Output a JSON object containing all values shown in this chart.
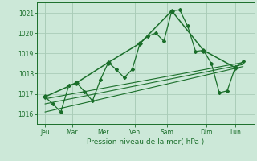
{
  "xlabel": "Pression niveau de la mer( hPa )",
  "bg_color": "#cce8d8",
  "plot_bg_color": "#cce8d8",
  "grid_color": "#aaccb8",
  "line_color": "#1a6e2a",
  "ylim": [
    1015.5,
    1021.5
  ],
  "yticks": [
    1016,
    1017,
    1018,
    1019,
    1020,
    1021
  ],
  "xlim": [
    -0.2,
    13.5
  ],
  "day_labels": [
    "Jeu",
    "Mar",
    "Mer",
    "Ven",
    "Sam",
    "Dim",
    "Lun"
  ],
  "day_positions": [
    0.3,
    2.0,
    4.0,
    6.0,
    8.0,
    10.5,
    12.3
  ],
  "series1_x": [
    0.3,
    0.8,
    1.3,
    1.8,
    2.3,
    2.8,
    3.3,
    3.8,
    4.3,
    4.8,
    5.3,
    5.8,
    6.3,
    6.8,
    7.3,
    7.8,
    8.3,
    8.8,
    9.3,
    9.8,
    10.3,
    10.8,
    11.3,
    11.8,
    12.3,
    12.8
  ],
  "series1_y": [
    1016.85,
    1016.5,
    1016.1,
    1017.4,
    1017.55,
    1017.1,
    1016.65,
    1017.7,
    1018.55,
    1018.2,
    1017.8,
    1018.2,
    1019.5,
    1019.85,
    1020.0,
    1019.6,
    1021.1,
    1021.15,
    1020.35,
    1019.1,
    1019.15,
    1018.5,
    1017.05,
    1017.15,
    1018.3,
    1018.6
  ],
  "series2_x": [
    0.3,
    2.3,
    4.3,
    6.3,
    8.3,
    10.3,
    12.3
  ],
  "series2_y": [
    1016.85,
    1017.55,
    1018.55,
    1019.5,
    1021.1,
    1019.15,
    1018.3
  ],
  "trend1_x": [
    0.3,
    12.8
  ],
  "trend1_y": [
    1016.5,
    1018.45
  ],
  "trend2_x": [
    0.3,
    12.8
  ],
  "trend2_y": [
    1016.75,
    1018.55
  ],
  "trend3_x": [
    0.3,
    12.8
  ],
  "trend3_y": [
    1016.1,
    1018.35
  ]
}
